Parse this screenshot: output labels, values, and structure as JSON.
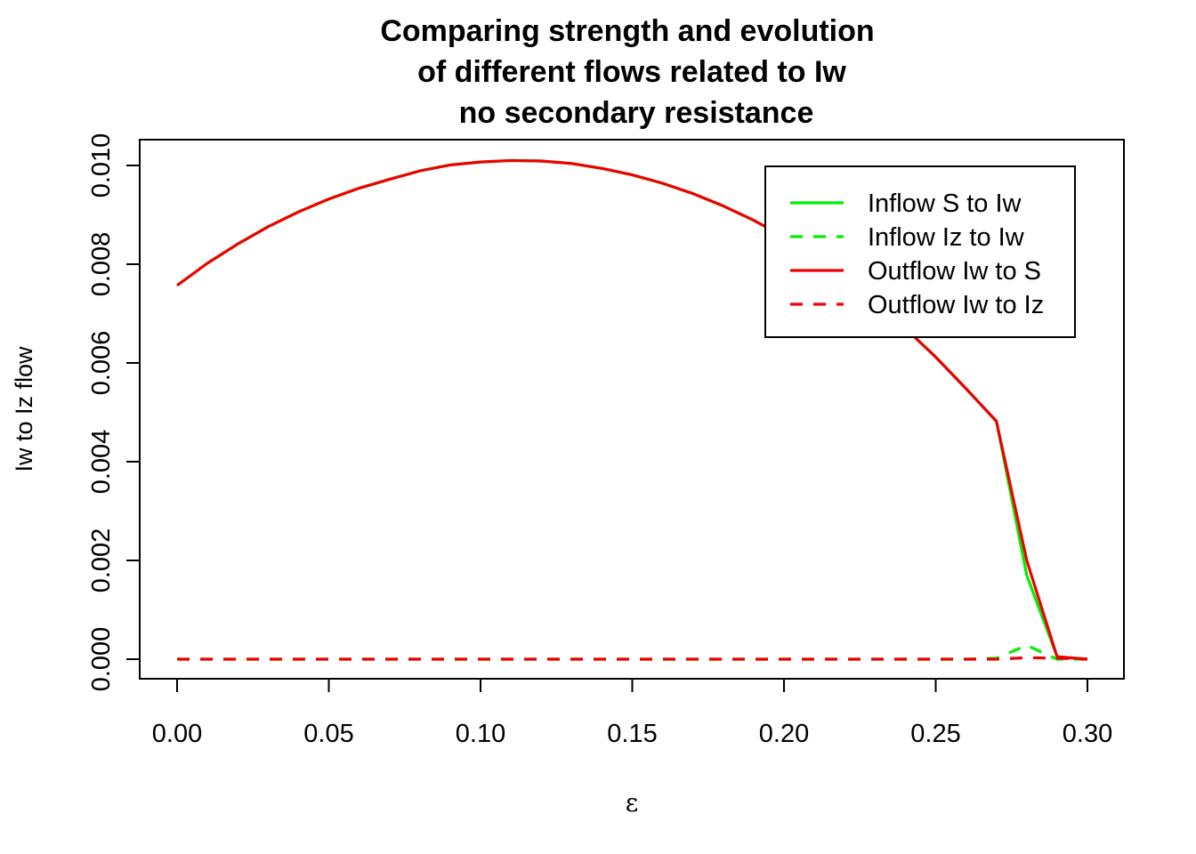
{
  "chart_data": {
    "type": "line",
    "title": "Comparing strength and evolution of different flows related to Iw no secondary resistance",
    "title_lines": [
      "Comparing strength and evolution",
      "of different flows related to Iw",
      "no secondary resistance"
    ],
    "xlabel": "ε",
    "ylabel": "Iw to Iz flow",
    "xlim": [
      0.0,
      0.3
    ],
    "ylim": [
      0.0,
      0.01
    ],
    "x_ticks": [
      "0.00",
      "0.05",
      "0.10",
      "0.15",
      "0.20",
      "0.25",
      "0.30"
    ],
    "y_ticks": [
      "0.000",
      "0.002",
      "0.004",
      "0.006",
      "0.008",
      "0.010"
    ],
    "grid": false,
    "legend_position": "top-right",
    "x": [
      0.0,
      0.01,
      0.02,
      0.03,
      0.04,
      0.05,
      0.06,
      0.07,
      0.08,
      0.09,
      0.1,
      0.11,
      0.12,
      0.13,
      0.14,
      0.15,
      0.16,
      0.17,
      0.18,
      0.19,
      0.2,
      0.21,
      0.22,
      0.23,
      0.24,
      0.25,
      0.26,
      0.27,
      0.28,
      0.29,
      0.3
    ],
    "series": [
      {
        "name": "Inflow S to Iw",
        "color": "#00ee00",
        "dash": "solid",
        "values": [
          0.00757,
          0.00802,
          0.00841,
          0.00876,
          0.00906,
          0.00932,
          0.00954,
          0.00972,
          0.00989,
          0.01001,
          0.01007,
          0.0101,
          0.01009,
          0.01004,
          0.00994,
          0.00981,
          0.00964,
          0.00943,
          0.00918,
          0.00889,
          0.00856,
          0.00819,
          0.00778,
          0.00733,
          0.0067,
          0.00612,
          0.00548,
          0.00482,
          0.0017,
          5e-05,
          0.0
        ]
      },
      {
        "name": "Inflow Iz to Iw",
        "color": "#00ee00",
        "dash": "dashed",
        "values": [
          0.0,
          0.0,
          0.0,
          0.0,
          0.0,
          0.0,
          0.0,
          0.0,
          0.0,
          0.0,
          0.0,
          0.0,
          0.0,
          0.0,
          0.0,
          0.0,
          0.0,
          0.0,
          0.0,
          0.0,
          0.0,
          0.0,
          0.0,
          0.0,
          0.0,
          0.0,
          0.0,
          2e-05,
          0.00028,
          0.0,
          0.0
        ]
      },
      {
        "name": "Outflow Iw to S",
        "color": "#ee0000",
        "dash": "solid",
        "values": [
          0.00757,
          0.00802,
          0.00841,
          0.00876,
          0.00906,
          0.00932,
          0.00954,
          0.00972,
          0.00989,
          0.01001,
          0.01007,
          0.0101,
          0.01009,
          0.01004,
          0.00994,
          0.00981,
          0.00964,
          0.00943,
          0.00918,
          0.00889,
          0.00856,
          0.00819,
          0.00778,
          0.00733,
          0.0067,
          0.00612,
          0.00548,
          0.00482,
          0.002,
          5e-05,
          0.0
        ]
      },
      {
        "name": "Outflow Iw to Iz",
        "color": "#ee0000",
        "dash": "dashed",
        "values": [
          0.0,
          0.0,
          0.0,
          0.0,
          0.0,
          0.0,
          0.0,
          0.0,
          0.0,
          0.0,
          0.0,
          0.0,
          0.0,
          0.0,
          0.0,
          0.0,
          0.0,
          0.0,
          0.0,
          0.0,
          0.0,
          0.0,
          0.0,
          0.0,
          0.0,
          0.0,
          0.0,
          0.0,
          3e-05,
          2e-05,
          0.0
        ]
      }
    ]
  }
}
